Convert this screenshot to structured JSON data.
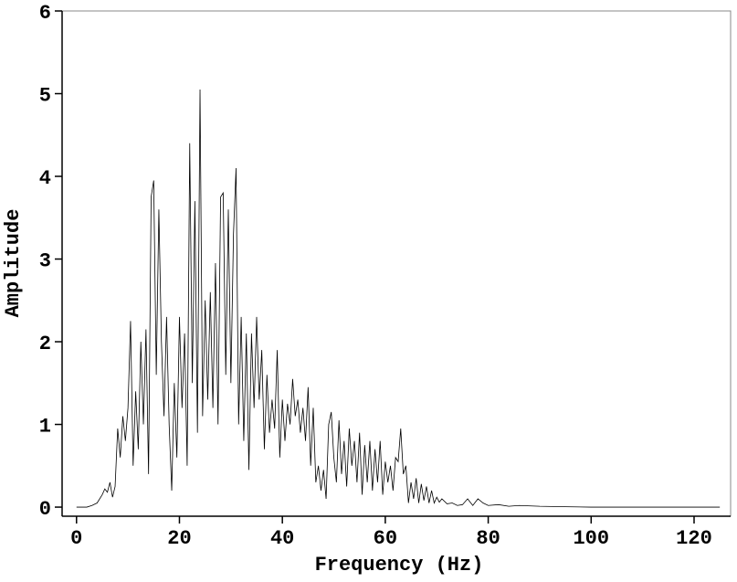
{
  "chart_data": {
    "type": "line",
    "xlabel": "Frequency (Hz)",
    "ylabel": "Amplitude",
    "x": [
      0,
      2,
      3,
      4,
      5,
      5.5,
      6,
      6.5,
      7,
      7.5,
      8,
      8.5,
      9,
      9.5,
      10,
      10.5,
      11,
      11.5,
      12,
      12.5,
      13,
      13.5,
      14,
      14.5,
      15,
      15.5,
      16,
      16.5,
      17,
      17.5,
      18,
      18.5,
      19,
      19.5,
      20,
      20.5,
      21,
      21.5,
      22,
      22.5,
      23,
      23.5,
      24,
      24.5,
      25,
      25.5,
      26,
      26.5,
      27,
      27.5,
      28,
      28.5,
      29,
      29.5,
      30,
      30.5,
      31,
      31.5,
      32,
      32.5,
      33,
      33.5,
      34,
      34.5,
      35,
      35.5,
      36,
      36.5,
      37,
      37.5,
      38,
      38.5,
      39,
      39.5,
      40,
      40.5,
      41,
      41.5,
      42,
      42.5,
      43,
      43.5,
      44,
      44.5,
      45,
      45.5,
      46,
      46.5,
      47,
      47.5,
      48,
      48.5,
      49,
      49.5,
      50,
      50.5,
      51,
      51.5,
      52,
      52.5,
      53,
      53.5,
      54,
      54.5,
      55,
      55.5,
      56,
      56.5,
      57,
      57.5,
      58,
      58.5,
      59,
      59.5,
      60,
      60.5,
      61,
      61.5,
      62,
      62.5,
      63,
      63.5,
      64,
      64.5,
      65,
      65.5,
      66,
      66.5,
      67,
      67.5,
      68,
      68.5,
      69,
      69.5,
      70,
      70.5,
      71,
      72,
      73,
      74,
      75,
      76,
      77,
      78,
      79,
      80,
      82,
      84,
      86,
      90,
      95,
      100,
      110,
      125
    ],
    "series": [
      {
        "name": "Amplitude",
        "color": "#000000",
        "values": [
          0,
          0,
          0.02,
          0.05,
          0.15,
          0.22,
          0.18,
          0.3,
          0.12,
          0.25,
          0.95,
          0.6,
          1.1,
          0.8,
          1.2,
          2.25,
          0.5,
          1.4,
          0.7,
          2.0,
          1.0,
          2.15,
          0.4,
          3.75,
          3.95,
          1.6,
          3.6,
          2.0,
          1.1,
          2.3,
          1.0,
          0.2,
          1.5,
          0.6,
          2.3,
          1.2,
          2.1,
          0.5,
          4.4,
          1.5,
          3.7,
          0.9,
          5.05,
          1.1,
          2.5,
          1.3,
          2.6,
          1.2,
          2.95,
          1.0,
          3.75,
          3.8,
          1.6,
          3.6,
          1.5,
          3.3,
          4.1,
          1.0,
          2.3,
          0.8,
          2.1,
          0.45,
          2.1,
          1.2,
          2.3,
          1.3,
          1.9,
          0.7,
          1.6,
          0.9,
          1.3,
          0.95,
          1.9,
          0.6,
          1.3,
          0.8,
          1.25,
          1.0,
          1.55,
          1.1,
          1.3,
          0.9,
          1.2,
          0.8,
          1.45,
          0.5,
          1.2,
          0.3,
          0.5,
          0.2,
          0.45,
          0.1,
          1.0,
          1.15,
          0.6,
          0.3,
          1.05,
          0.4,
          0.8,
          0.25,
          0.95,
          0.5,
          0.8,
          0.3,
          0.9,
          0.15,
          0.75,
          0.3,
          0.8,
          0.2,
          0.7,
          0.3,
          0.8,
          0.15,
          0.55,
          0.3,
          0.5,
          0.2,
          0.6,
          0.55,
          0.95,
          0.4,
          0.5,
          0.05,
          0.3,
          0.1,
          0.35,
          0.05,
          0.28,
          0.08,
          0.25,
          0.05,
          0.2,
          0.05,
          0.12,
          0.06,
          0.1,
          0.04,
          0.05,
          0.02,
          0.03,
          0.1,
          0.02,
          0.1,
          0.05,
          0.02,
          0.03,
          0.01,
          0.02,
          0.01,
          0.005,
          0,
          0,
          0
        ]
      }
    ],
    "xlim": [
      -2.8,
      127.1
    ],
    "ylim": [
      -0.11,
      6
    ],
    "xticks": [
      0,
      20,
      40,
      60,
      80,
      100,
      120
    ],
    "yticks": [
      0,
      1,
      2,
      3,
      4,
      5,
      6
    ],
    "grid": false
  }
}
